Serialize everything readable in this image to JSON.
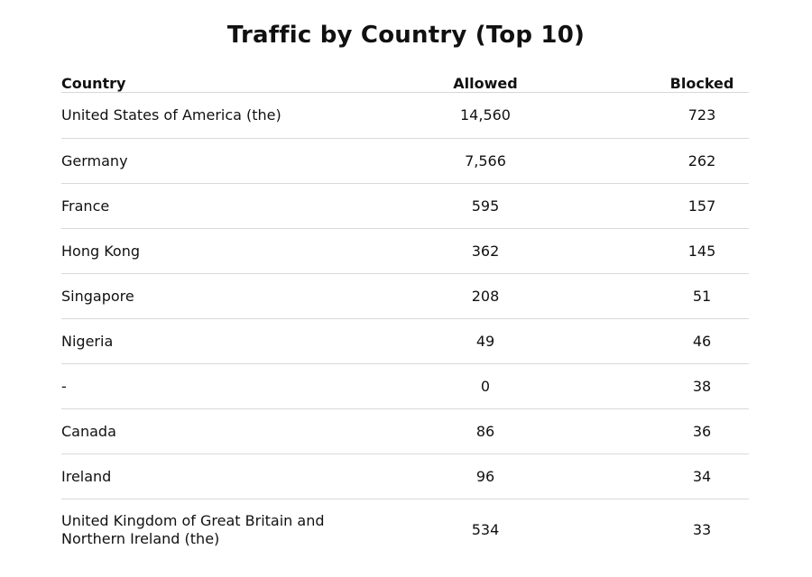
{
  "title": "Traffic by Country (Top 10)",
  "columns": {
    "country": "Country",
    "allowed": "Allowed",
    "blocked": "Blocked"
  },
  "rows": [
    {
      "country": "United States of America (the)",
      "allowed": "14,560",
      "blocked": "723"
    },
    {
      "country": "Germany",
      "allowed": "7,566",
      "blocked": "262"
    },
    {
      "country": "France",
      "allowed": "595",
      "blocked": "157"
    },
    {
      "country": "Hong Kong",
      "allowed": "362",
      "blocked": "145"
    },
    {
      "country": "Singapore",
      "allowed": "208",
      "blocked": "51"
    },
    {
      "country": "Nigeria",
      "allowed": "49",
      "blocked": "46"
    },
    {
      "country": "-",
      "allowed": "0",
      "blocked": "38"
    },
    {
      "country": "Canada",
      "allowed": "86",
      "blocked": "36"
    },
    {
      "country": "Ireland",
      "allowed": "96",
      "blocked": "34"
    },
    {
      "country": "United Kingdom of Great Britain and Northern Ireland (the)",
      "allowed": "534",
      "blocked": "33"
    }
  ]
}
